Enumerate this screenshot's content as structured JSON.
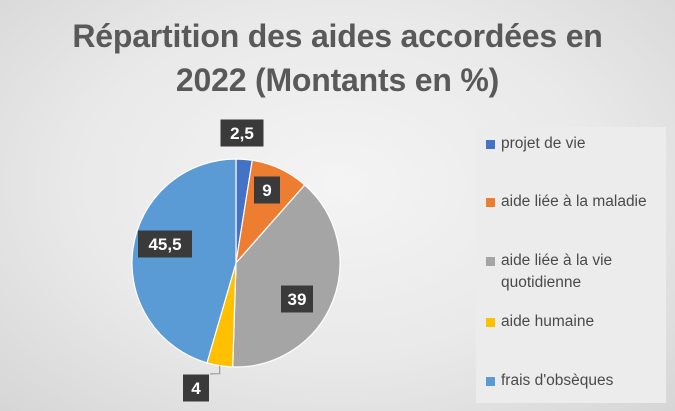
{
  "chart_data": {
    "type": "pie",
    "title": "Répartition des aides accordées en 2022 (Montants en %)",
    "title_lines": [
      "Répartition des aides accordées en",
      "2022 (Montants en %)"
    ],
    "categories": [
      "projet de vie",
      "aide liée à la maladie",
      "aide liée à la vie quotidienne",
      "aide humaine",
      "frais d'obsèques"
    ],
    "values": [
      2.5,
      9,
      39,
      4,
      45.5
    ],
    "data_labels": [
      "2,5",
      "9",
      "39",
      "4",
      "45,5"
    ],
    "colors": [
      "#4472C4",
      "#ED7D31",
      "#A5A5A5",
      "#FFC000",
      "#5B9BD5"
    ],
    "legend_position": "right"
  },
  "legend": {
    "items": [
      {
        "label": "projet de vie",
        "color": "#4472C4"
      },
      {
        "label": "aide liée à la maladie",
        "color": "#ED7D31"
      },
      {
        "label_lines": [
          "aide liée à la vie",
          "quotidienne"
        ],
        "color": "#A5A5A5"
      },
      {
        "label": "aide humaine",
        "color": "#FFC000"
      },
      {
        "label": "frais d'obsèques",
        "color": "#5B9BD5"
      }
    ]
  }
}
